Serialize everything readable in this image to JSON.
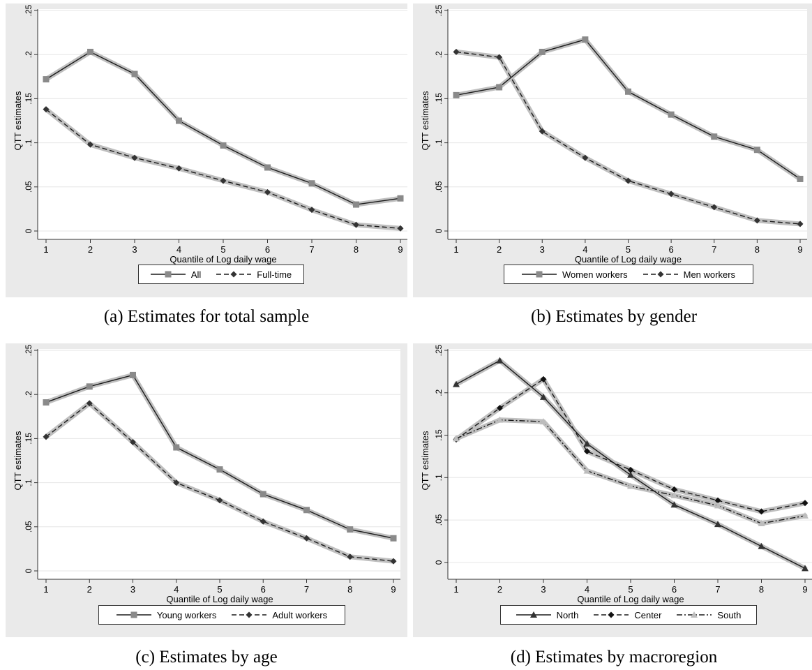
{
  "chart_data": [
    {
      "id": "a",
      "type": "line",
      "caption": "(a) Estimates for total sample",
      "xlabel": "Quantile of Log daily wage",
      "ylabel": "QTT estimates",
      "x": [
        1,
        2,
        3,
        4,
        5,
        6,
        7,
        8,
        9
      ],
      "ylim": [
        0,
        0.25
      ],
      "yticks": [
        "0",
        ".05",
        ".1",
        ".15",
        ".2",
        ".25"
      ],
      "series": [
        {
          "name": "All",
          "values": [
            0.172,
            0.203,
            0.178,
            0.125,
            0.097,
            0.072,
            0.054,
            0.03,
            0.037
          ],
          "marker": "square",
          "dash": "solid",
          "color": "#1a1a1a",
          "marker_color": "#8a8a8a"
        },
        {
          "name": "Full-time",
          "values": [
            0.138,
            0.098,
            0.083,
            0.071,
            0.057,
            0.044,
            0.024,
            0.007,
            0.003
          ],
          "marker": "diamond",
          "dash": "dash",
          "color": "#1a1a1a",
          "marker_color": "#333333"
        }
      ],
      "grid": true,
      "legend_position": "bottom"
    },
    {
      "id": "b",
      "type": "line",
      "caption": "(b) Estimates by gender",
      "xlabel": "Quantile of Log daily wage",
      "ylabel": "QTT estimates",
      "x": [
        1,
        2,
        3,
        4,
        5,
        6,
        7,
        8,
        9
      ],
      "ylim": [
        0,
        0.25
      ],
      "yticks": [
        "0",
        ".05",
        ".1",
        ".15",
        ".2",
        ".25"
      ],
      "series": [
        {
          "name": "Women workers",
          "values": [
            0.154,
            0.163,
            0.203,
            0.217,
            0.158,
            0.132,
            0.107,
            0.092,
            0.059
          ],
          "marker": "square",
          "dash": "solid",
          "color": "#1a1a1a",
          "marker_color": "#8a8a8a"
        },
        {
          "name": "Men workers",
          "values": [
            0.203,
            0.197,
            0.113,
            0.083,
            0.057,
            0.042,
            0.027,
            0.012,
            0.008
          ],
          "marker": "diamond",
          "dash": "dash",
          "color": "#1a1a1a",
          "marker_color": "#333333"
        }
      ],
      "grid": true,
      "legend_position": "bottom"
    },
    {
      "id": "c",
      "type": "line",
      "caption": "(c) Estimates by age",
      "xlabel": "Quantile of Log daily wage",
      "ylabel": "QTT estimates",
      "x": [
        1,
        2,
        3,
        4,
        5,
        6,
        7,
        8,
        9
      ],
      "ylim": [
        0,
        0.25
      ],
      "yticks": [
        "0",
        ".05",
        ".1",
        ".15",
        ".2",
        ".25"
      ],
      "series": [
        {
          "name": "Young workers",
          "values": [
            0.191,
            0.209,
            0.222,
            0.14,
            0.115,
            0.087,
            0.069,
            0.047,
            0.037
          ],
          "marker": "square",
          "dash": "solid",
          "color": "#1a1a1a",
          "marker_color": "#8a8a8a"
        },
        {
          "name": "Adult workers",
          "values": [
            0.152,
            0.19,
            0.146,
            0.1,
            0.08,
            0.056,
            0.037,
            0.016,
            0.011
          ],
          "marker": "diamond",
          "dash": "dash",
          "color": "#1a1a1a",
          "marker_color": "#333333"
        }
      ],
      "grid": true,
      "legend_position": "bottom"
    },
    {
      "id": "d",
      "type": "line",
      "caption": "(d) Estimates by macroregion",
      "xlabel": "Quantile of Log daily wage",
      "ylabel": "QTT estimates",
      "x": [
        1,
        2,
        3,
        4,
        5,
        6,
        7,
        8,
        9
      ],
      "ylim": [
        -0.01,
        0.25
      ],
      "yticks": [
        "0",
        ".05",
        ".1",
        ".15",
        ".2",
        ".25"
      ],
      "series": [
        {
          "name": "North",
          "values": [
            0.21,
            0.238,
            0.195,
            0.14,
            0.103,
            0.068,
            0.045,
            0.019,
            -0.007
          ],
          "marker": "triangle",
          "dash": "solid",
          "color": "#1a1a1a",
          "marker_color": "#333333"
        },
        {
          "name": "Center",
          "values": [
            0.145,
            0.182,
            0.216,
            0.131,
            0.109,
            0.086,
            0.073,
            0.06,
            0.07
          ],
          "marker": "diamond",
          "dash": "dash",
          "color": "#1a1a1a",
          "marker_color": "#111111"
        },
        {
          "name": "South",
          "values": [
            0.146,
            0.168,
            0.166,
            0.108,
            0.09,
            0.079,
            0.067,
            0.046,
            0.055
          ],
          "marker": "triangle",
          "dash": "dashdot",
          "color": "#1a1a1a",
          "marker_color": "#bdbdbd"
        }
      ],
      "grid": true,
      "legend_position": "bottom"
    }
  ]
}
